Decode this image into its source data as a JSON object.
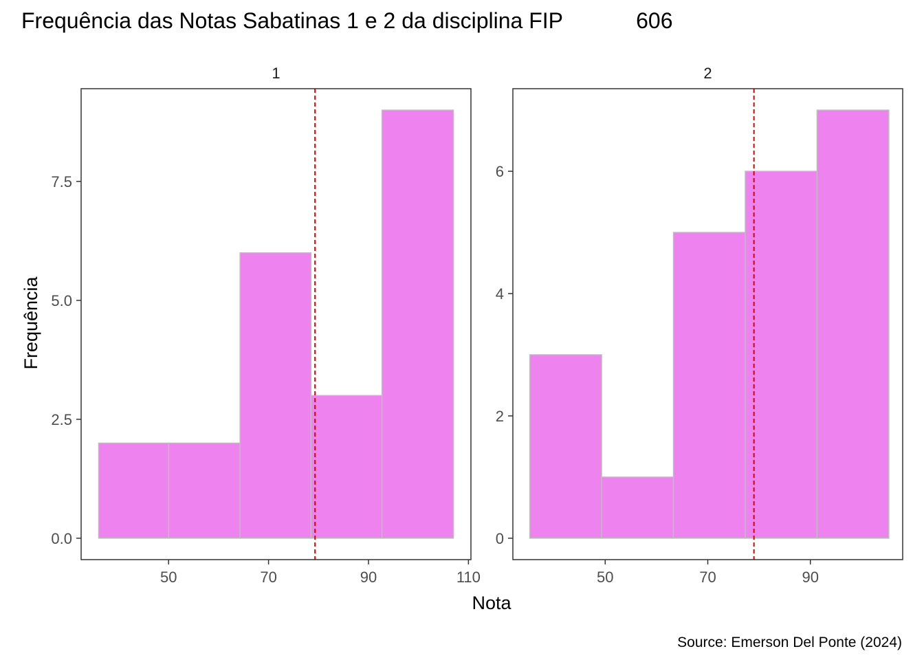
{
  "chart_data": {
    "type": "bar",
    "title": "Frequência das Notas Sabatinas 1 e 2 da disciplina FIP            606",
    "xlabel": "Nota",
    "ylabel": "Frequência",
    "caption": "Source: Emerson Del Ponte (2024)",
    "bar_fill": "#EE82EE",
    "bar_outline": "#BEBEBE",
    "mean_line_color": "#E00000",
    "grid": false,
    "legend": "none",
    "facets": [
      {
        "label": "1",
        "x_ticks": [
          50,
          70,
          90,
          110
        ],
        "x_tick_labels": [
          "50",
          "70",
          "90",
          "110"
        ],
        "xlim": [
          32.5,
          110.5
        ],
        "y_ticks": [
          0,
          2.5,
          5,
          7.5
        ],
        "y_tick_labels": [
          "0.0",
          "2.5",
          "5.0",
          "7.5"
        ],
        "ylim": [
          -0.45,
          9.45
        ],
        "bins": [
          {
            "x0": 36,
            "x1": 50,
            "count": 2
          },
          {
            "x0": 50,
            "x1": 64.3,
            "count": 2
          },
          {
            "x0": 64.3,
            "x1": 78.5,
            "count": 6
          },
          {
            "x0": 78.5,
            "x1": 92.7,
            "count": 3
          },
          {
            "x0": 92.7,
            "x1": 107,
            "count": 9
          }
        ],
        "mean": 79.3
      },
      {
        "label": "2",
        "x_ticks": [
          50,
          70,
          90
        ],
        "x_tick_labels": [
          "50",
          "70",
          "90"
        ],
        "xlim": [
          32,
          108
        ],
        "y_ticks": [
          0,
          2,
          4,
          6
        ],
        "y_tick_labels": [
          "0",
          "2",
          "4",
          "6"
        ],
        "ylim": [
          -0.35,
          7.35
        ],
        "bins": [
          {
            "x0": 35.3,
            "x1": 49.3,
            "count": 3
          },
          {
            "x0": 49.3,
            "x1": 63.3,
            "count": 1
          },
          {
            "x0": 63.3,
            "x1": 77.3,
            "count": 5
          },
          {
            "x0": 77.3,
            "x1": 91.3,
            "count": 6
          },
          {
            "x0": 91.3,
            "x1": 105.3,
            "count": 7
          }
        ],
        "mean": 79.0
      }
    ]
  }
}
